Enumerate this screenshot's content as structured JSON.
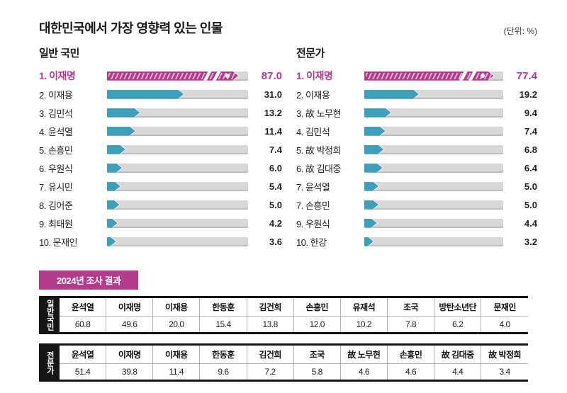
{
  "title": "대한민국에서 가장 영향력 있는 인물",
  "unit_label": "(단위: %)",
  "survey_badge": "2024년 조사 결과",
  "colors": {
    "accent_magenta": "#b43a8c",
    "bar_teal": "#3e9fbb",
    "track_gray": "#d8d8d8",
    "ink": "#1a1a1a",
    "table_header_bg": "#161616"
  },
  "chart_data": [
    {
      "type": "bar",
      "title": "일반 국민",
      "unit": "%",
      "scale_max": 57,
      "legend": "rank 1 highlighted in magenta with hatched truncated bar",
      "rows": [
        {
          "rank": "1",
          "name": "이재명",
          "value": 87.0,
          "highlight": true,
          "truncated": true
        },
        {
          "rank": "2",
          "name": "이재용",
          "value": 31.0
        },
        {
          "rank": "3",
          "name": "김민석",
          "value": 13.2
        },
        {
          "rank": "4",
          "name": "윤석열",
          "value": 11.4
        },
        {
          "rank": "5",
          "name": "손흥민",
          "value": 7.4
        },
        {
          "rank": "6",
          "name": "우원식",
          "value": 6.0
        },
        {
          "rank": "7",
          "name": "유시민",
          "value": 5.4
        },
        {
          "rank": "8",
          "name": "김어준",
          "value": 5.0
        },
        {
          "rank": "9",
          "name": "최태원",
          "value": 4.2
        },
        {
          "rank": "10",
          "name": "문재인",
          "value": 3.6
        }
      ]
    },
    {
      "type": "bar",
      "title": "전문가",
      "unit": "%",
      "scale_max": 49,
      "legend": "rank 1 highlighted in magenta with hatched truncated bar",
      "rows": [
        {
          "rank": "1",
          "name": "이재명",
          "value": 77.4,
          "highlight": true,
          "truncated": true
        },
        {
          "rank": "2",
          "name": "이재용",
          "value": 19.2
        },
        {
          "rank": "3",
          "name": "故 노무현",
          "value": 9.4
        },
        {
          "rank": "4",
          "name": "김민석",
          "value": 7.4
        },
        {
          "rank": "5",
          "name": "故 박정희",
          "value": 6.8
        },
        {
          "rank": "6",
          "name": "故 김대중",
          "value": 6.4
        },
        {
          "rank": "7",
          "name": "윤석열",
          "value": 5.0
        },
        {
          "rank": "7",
          "name": "손흥민",
          "value": 5.0
        },
        {
          "rank": "9",
          "name": "우원식",
          "value": 4.4
        },
        {
          "rank": "10",
          "name": "한강",
          "value": 3.2
        }
      ]
    },
    {
      "type": "table",
      "group": "일반국민",
      "columns": [
        {
          "name": "윤석열",
          "value": 60.8
        },
        {
          "name": "이재명",
          "value": 49.6
        },
        {
          "name": "이재용",
          "value": 20.0
        },
        {
          "name": "한동훈",
          "value": 15.4
        },
        {
          "name": "김건희",
          "value": 13.8
        },
        {
          "name": "손흥민",
          "value": 12.0
        },
        {
          "name": "유재석",
          "value": 10.2
        },
        {
          "name": "조국",
          "value": 7.8
        },
        {
          "name": "방탄소년단",
          "value": 6.2
        },
        {
          "name": "문재인",
          "value": 4.0
        }
      ]
    },
    {
      "type": "table",
      "group": "전문가",
      "columns": [
        {
          "name": "윤석열",
          "value": 51.4
        },
        {
          "name": "이재명",
          "value": 39.8
        },
        {
          "name": "이재용",
          "value": 11.4
        },
        {
          "name": "한동훈",
          "value": 9.6
        },
        {
          "name": "김건희",
          "value": 7.2
        },
        {
          "name": "조국",
          "value": 5.8
        },
        {
          "name": "故 노무현",
          "value": 4.6
        },
        {
          "name": "손흥민",
          "value": 4.6
        },
        {
          "name": "故 김대중",
          "value": 4.4
        },
        {
          "name": "故 박정희",
          "value": 3.4
        }
      ]
    }
  ]
}
